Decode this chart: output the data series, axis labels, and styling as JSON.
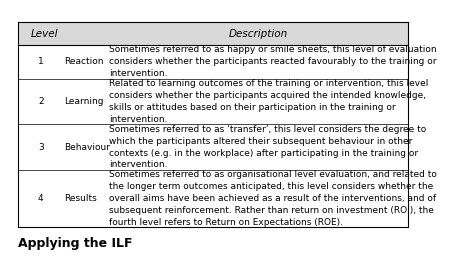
{
  "header": [
    "Level",
    "",
    "Description"
  ],
  "rows": [
    {
      "level": "1",
      "name": "Reaction",
      "desc": "Sometimes referred to as happy or smile sheets, this level of evaluation\nconsiders whether the participants reacted favourably to the training or\nintervention."
    },
    {
      "level": "2",
      "name": "Learning",
      "desc": "Related to learning outcomes of the training or intervention, this level\nconsiders whether the participants acquired the intended knowledge,\nskills or attitudes based on their participation in the training or\nintervention."
    },
    {
      "level": "3",
      "name": "Behaviour",
      "desc": "Sometimes referred to as ‘transfer’, this level considers the degree to\nwhich the participants altered their subsequent behaviour in other\ncontexts (e.g. in the workplace) after participating in the training or\nintervention."
    },
    {
      "level": "4",
      "name": "Results",
      "desc": "Sometimes referred to as organisational level evaluation, and related to\nthe longer term outcomes anticipated, this level considers whether the\noverall aims have been achieved as a result of the interventions, and of\nsubsequent reinforcement. Rather than return on investment (ROI), the\nfourth level refers to Return on Expectations (ROE)."
    }
  ],
  "footer_text": "Applying the ILF",
  "header_bg": "#d9d9d9",
  "table_bg": "#ffffff",
  "text_color": "#000000",
  "border_color": "#000000",
  "font_size": 6.5,
  "header_font_size": 7.5,
  "footer_font_size": 9
}
